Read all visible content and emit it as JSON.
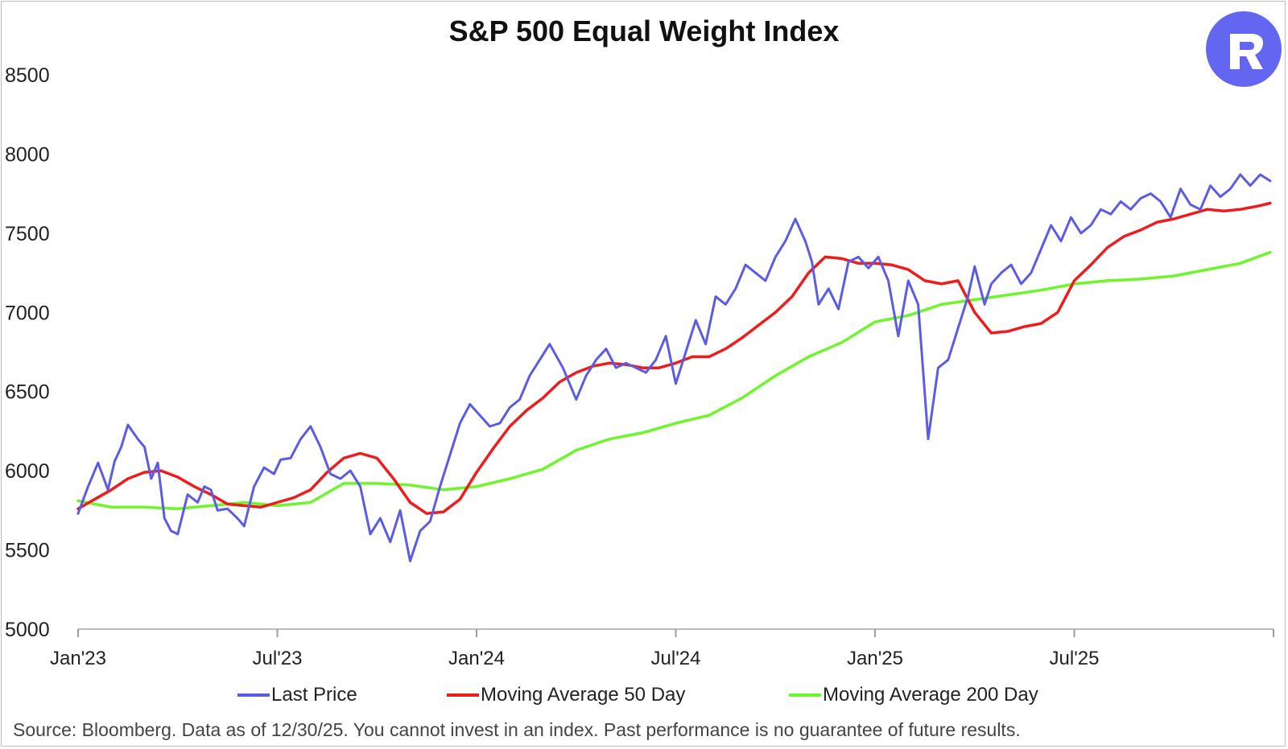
{
  "title": "S&P 500 Equal Weight Index",
  "logo": {
    "icon": "r-logo-icon",
    "color": "#6366f1"
  },
  "source": "Source: Bloomberg. Data as of 12/30/25. You cannot invest in an index. Past performance is no guarantee of future results.",
  "chart_data": {
    "type": "line",
    "title": "S&P 500 Equal Weight Index",
    "xlabel": "",
    "ylabel": "",
    "ylim": [
      5000,
      8500
    ],
    "yticks": [
      "8500",
      "8000",
      "7500",
      "7000",
      "6500",
      "6000",
      "5500",
      "5000"
    ],
    "ytick_values": [
      8500,
      8000,
      7500,
      7000,
      6500,
      6000,
      5500,
      5000
    ],
    "xlim": [
      0,
      36
    ],
    "xticks": [
      "Jan'23",
      "Jul'23",
      "Jan'24",
      "Jul'24",
      "Jan'25",
      "Jul'25"
    ],
    "xtick_values": [
      0,
      6,
      12,
      18,
      24,
      30
    ],
    "grid": false,
    "legend_position": "bottom",
    "series": [
      {
        "name": "Last Price",
        "color": "#5b5ce6",
        "x": [
          0,
          0.3,
          0.6,
          0.9,
          1.1,
          1.3,
          1.5,
          1.8,
          2.0,
          2.2,
          2.4,
          2.6,
          2.8,
          3.0,
          3.3,
          3.6,
          3.8,
          4.0,
          4.2,
          4.5,
          4.8,
          5.0,
          5.3,
          5.6,
          5.9,
          6.1,
          6.4,
          6.7,
          7.0,
          7.3,
          7.6,
          7.9,
          8.2,
          8.5,
          8.8,
          9.1,
          9.4,
          9.7,
          10.0,
          10.3,
          10.6,
          10.9,
          11.2,
          11.5,
          11.8,
          12.1,
          12.4,
          12.7,
          13.0,
          13.3,
          13.6,
          13.9,
          14.2,
          14.6,
          15.0,
          15.3,
          15.6,
          15.9,
          16.2,
          16.5,
          16.8,
          17.1,
          17.4,
          17.7,
          18.0,
          18.3,
          18.6,
          18.9,
          19.2,
          19.5,
          19.8,
          20.1,
          20.4,
          20.7,
          21.0,
          21.3,
          21.6,
          21.9,
          22.1,
          22.3,
          22.6,
          22.9,
          23.2,
          23.5,
          23.8,
          24.1,
          24.4,
          24.7,
          25.0,
          25.3,
          25.6,
          25.9,
          26.2,
          26.5,
          26.8,
          27.0,
          27.3,
          27.5,
          27.8,
          28.1,
          28.4,
          28.7,
          29.0,
          29.3,
          29.6,
          29.9,
          30.2,
          30.5,
          30.8,
          31.1,
          31.4,
          31.7,
          32.0,
          32.3,
          32.6,
          32.9,
          33.2,
          33.5,
          33.8,
          34.1,
          34.4,
          34.7,
          35.0,
          35.3,
          35.6,
          35.9
        ],
        "values": [
          5730,
          5900,
          6050,
          5880,
          6060,
          6150,
          6290,
          6200,
          6150,
          5950,
          6050,
          5700,
          5620,
          5600,
          5850,
          5800,
          5900,
          5880,
          5750,
          5760,
          5700,
          5650,
          5900,
          6020,
          5980,
          6070,
          6080,
          6200,
          6280,
          6150,
          5980,
          5950,
          6000,
          5900,
          5600,
          5700,
          5550,
          5750,
          5430,
          5620,
          5680,
          5900,
          6100,
          6300,
          6420,
          6350,
          6280,
          6300,
          6400,
          6450,
          6600,
          6700,
          6800,
          6650,
          6450,
          6600,
          6700,
          6770,
          6650,
          6680,
          6650,
          6620,
          6700,
          6850,
          6550,
          6750,
          6950,
          6800,
          7100,
          7050,
          7150,
          7300,
          7250,
          7200,
          7350,
          7450,
          7590,
          7450,
          7320,
          7050,
          7150,
          7020,
          7320,
          7350,
          7280,
          7350,
          7200,
          6850,
          7200,
          7050,
          6200,
          6650,
          6700,
          6900,
          7100,
          7290,
          7050,
          7180,
          7250,
          7300,
          7180,
          7250,
          7400,
          7550,
          7450,
          7600,
          7500,
          7550,
          7650,
          7620,
          7700,
          7650,
          7720,
          7750,
          7700,
          7600,
          7780,
          7680,
          7650,
          7800,
          7730,
          7780,
          7870,
          7800,
          7870,
          7830
        ]
      },
      {
        "name": "Moving Average 50 Day",
        "color": "#ee1c1c",
        "x": [
          0,
          1,
          1.5,
          2,
          2.5,
          3,
          3.5,
          4,
          4.5,
          5,
          5.5,
          6,
          6.5,
          7,
          7.5,
          8,
          8.5,
          9,
          9.5,
          10,
          10.5,
          11,
          11.5,
          12,
          12.5,
          13,
          13.5,
          14,
          14.5,
          15,
          15.5,
          16,
          16.5,
          17,
          17.5,
          18,
          18.5,
          19,
          19.5,
          20,
          20.5,
          21,
          21.5,
          22,
          22.5,
          23,
          23.5,
          24,
          24.5,
          25,
          25.5,
          26,
          26.5,
          27,
          27.5,
          28,
          28.5,
          29,
          29.5,
          30,
          30.5,
          31,
          31.5,
          32,
          32.5,
          33,
          33.5,
          34,
          34.5,
          35,
          35.5,
          35.9
        ],
        "values": [
          5760,
          5880,
          5950,
          5990,
          6000,
          5960,
          5900,
          5850,
          5790,
          5780,
          5770,
          5800,
          5830,
          5880,
          5990,
          6080,
          6110,
          6080,
          5950,
          5800,
          5730,
          5740,
          5820,
          5990,
          6140,
          6280,
          6380,
          6460,
          6560,
          6620,
          6660,
          6680,
          6670,
          6650,
          6650,
          6680,
          6720,
          6720,
          6770,
          6840,
          6920,
          7000,
          7100,
          7250,
          7350,
          7340,
          7310,
          7310,
          7300,
          7270,
          7200,
          7180,
          7200,
          7000,
          6870,
          6880,
          6910,
          6930,
          7000,
          7200,
          7300,
          7410,
          7480,
          7520,
          7570,
          7590,
          7620,
          7650,
          7640,
          7650,
          7670,
          7690
        ]
      },
      {
        "name": "Moving Average 200 Day",
        "color": "#6ef52b",
        "x": [
          0,
          1,
          2,
          3,
          4,
          5,
          6,
          7,
          8,
          9,
          10,
          11,
          12,
          13,
          14,
          15,
          16,
          17,
          18,
          19,
          20,
          21,
          22,
          23,
          24,
          25,
          26,
          27,
          28,
          29,
          30,
          31,
          32,
          33,
          34,
          35,
          35.9
        ],
        "values": [
          5810,
          5770,
          5770,
          5760,
          5780,
          5800,
          5780,
          5800,
          5920,
          5920,
          5910,
          5880,
          5900,
          5950,
          6010,
          6130,
          6200,
          6240,
          6300,
          6350,
          6460,
          6600,
          6720,
          6810,
          6940,
          6980,
          7050,
          7080,
          7110,
          7140,
          7180,
          7200,
          7210,
          7230,
          7270,
          7310,
          7380
        ]
      }
    ]
  }
}
